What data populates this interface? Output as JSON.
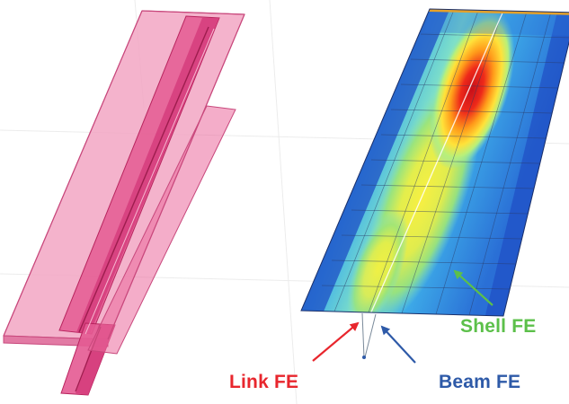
{
  "labels": {
    "shell": "Shell FE",
    "link": "Link FE",
    "beam": "Beam FE"
  },
  "colors": {
    "shell": "#5cc04a",
    "link": "#e8262d",
    "beam": "#2e5aa8",
    "member_fill": "#e8709a",
    "member_edge": "#b8245e",
    "background": "#ffffff"
  },
  "icons": {
    "shell_arrow": "arrow",
    "link_arrow": "arrow",
    "beam_arrow": "arrow"
  }
}
